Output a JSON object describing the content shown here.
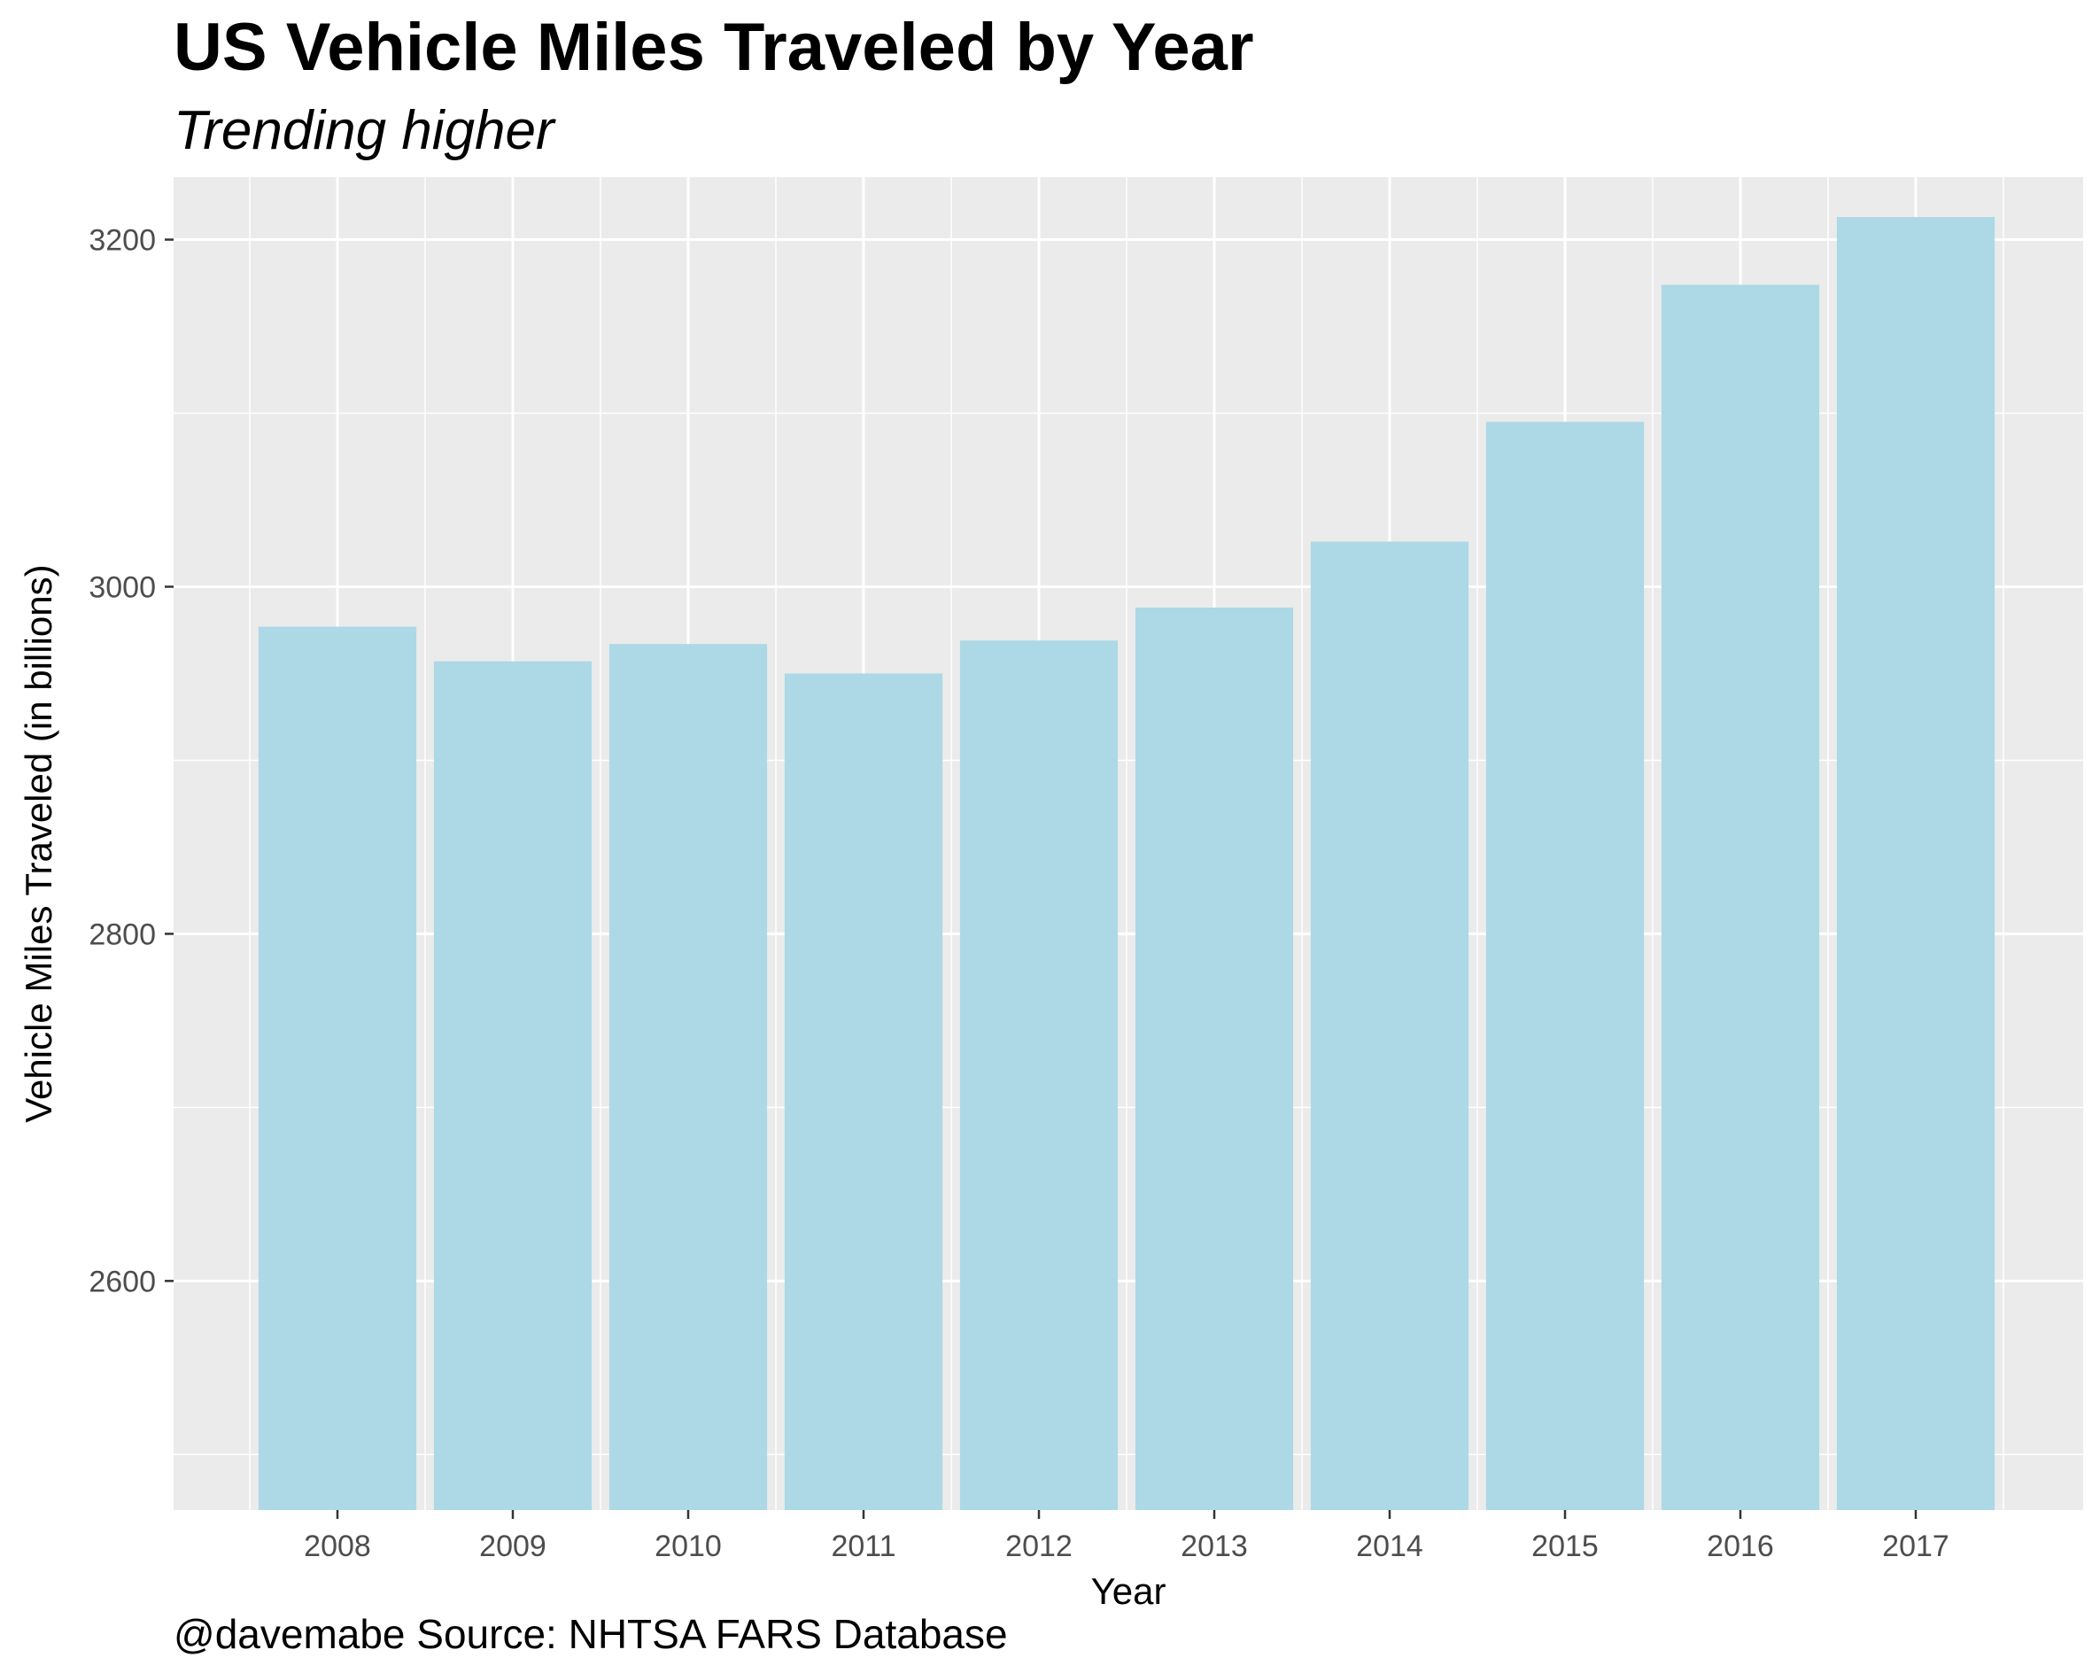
{
  "header": {
    "title": "US Vehicle Miles Traveled by Year",
    "subtitle": "Trending higher"
  },
  "footer": {
    "caption": "@davemabe Source: NHTSA FARS Database"
  },
  "colors": {
    "panel_background": "#EBEBEB",
    "gridline": "#FFFFFF",
    "bar_fill": "#ADD8E6",
    "tick_text": "#4D4D4D"
  },
  "chart_data": {
    "type": "bar",
    "title": "US Vehicle Miles Traveled by Year",
    "subtitle": "Trending higher",
    "xlabel": "Year",
    "ylabel": "Vehicle Miles Traveled (in billions)",
    "categories": [
      "2008",
      "2009",
      "2010",
      "2011",
      "2012",
      "2013",
      "2014",
      "2015",
      "2016",
      "2017"
    ],
    "values": [
      2977,
      2957,
      2967,
      2950,
      2969,
      2988,
      3026,
      3095,
      3174,
      3213
    ],
    "ylim": [
      2468,
      3236
    ],
    "yticks": [
      2600,
      2800,
      3000,
      3200
    ],
    "grid": true,
    "legend": "none"
  }
}
